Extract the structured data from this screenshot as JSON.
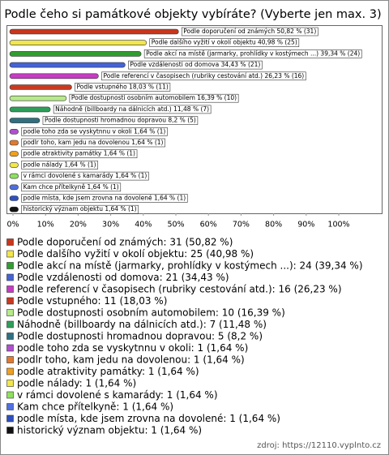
{
  "chart_data": {
    "type": "bar",
    "orientation": "horizontal",
    "title": "Podle čeho si památkové objekty vybíráte? (Vyberte jen max. 3)",
    "values": [
      50.82,
      40.98,
      39.34,
      34.43,
      26.23,
      18.03,
      16.39,
      11.48,
      8.2,
      1.64,
      1.64,
      1.64,
      1.64,
      1.64,
      1.64,
      1.64,
      1.64
    ],
    "colors": [
      "#c8361c",
      "#f2e64a",
      "#2f9e2f",
      "#4463d6",
      "#c73bc4",
      "#c83a20",
      "#b6ea8a",
      "#2f9e5a",
      "#2f7080",
      "#b050d0",
      "#e07a30",
      "#f0a020",
      "#f2e64a",
      "#8fe060",
      "#5070e0",
      "#2f50c0",
      "#111111"
    ],
    "bar_labels": [
      "Podle doporučení od známých 50,82 % (31)",
      "Podle dalšího vyžití v okolí objektu 40,98 % (25)",
      "Podle akcí na místě (jarmarky, prohlídky v kostýmech ...) 39,34 % (24)",
      "Podle vzdálenosti od domova 34,43 % (21)",
      "Podle referencí v časopisech (rubriky cestování atd.) 26,23 % (16)",
      "Podle vstupného 18,03 % (11)",
      "Podle dostupnosti osobním automobilem 16,39 % (10)",
      "Náhodně (billboardy na dálnicích atd.) 11,48 % (7)",
      "Podle dostupnosti hromadnou dopravou 8,2 % (5)",
      "podle toho zda se vyskytnnu v okoli 1,64 % (1)",
      "podlr toho, kam jedu na dovolenou 1,64 % (1)",
      "podle atraktivity památky 1,64 % (1)",
      "podle nálady 1,64 % (1)",
      "v rámci dovolené s kamarády 1,64 % (1)",
      "Kam chce přítelkyně 1,64 % (1)",
      "podle místa, kde jsem zrovna na dovolené 1,64 % (1)",
      "historický význam objektu 1,64 % (1)"
    ],
    "legend_labels": [
      "Podle doporučení od známých: 31 (50,82 %)",
      "Podle dalšího vyžití v okolí objektu: 25 (40,98 %)",
      "Podle akcí na místě (jarmarky, prohlídky v kostýmech ...): 24 (39,34 %)",
      "Podle vzdálenosti od domova: 21 (34,43 %)",
      "Podle referencí v časopisech (rubriky cestování atd.): 16 (26,23 %)",
      "Podle vstupného: 11 (18,03 %)",
      "Podle dostupnosti osobním automobilem: 10 (16,39 %)",
      "Náhodně (billboardy na dálnicích atd.): 7 (11,48 %)",
      "Podle dostupnosti hromadnou dopravou: 5 (8,2 %)",
      "podle toho zda se vyskytnnu v okoli: 1 (1,64 %)",
      "podlr toho, kam jedu na dovolenou: 1 (1,64 %)",
      "podle atraktivity památky: 1 (1,64 %)",
      "podle nálady: 1 (1,64 %)",
      "v rámci dovolené s kamarády: 1 (1,64 %)",
      "Kam chce přítelkyně: 1 (1,64 %)",
      "podle místa, kde jsem zrovna na dovolené: 1 (1,64 %)",
      "historický význam objektu: 1 (1,64 %)"
    ],
    "xlim": [
      0,
      100
    ],
    "xticks": [
      {
        "value": 0,
        "label": "0%"
      },
      {
        "value": 10,
        "label": "10%"
      },
      {
        "value": 20,
        "label": "20%"
      },
      {
        "value": 30,
        "label": "30%"
      },
      {
        "value": 40,
        "label": "40%"
      },
      {
        "value": 50,
        "label": "50%"
      },
      {
        "value": 60,
        "label": "60%"
      },
      {
        "value": 70,
        "label": "70%"
      },
      {
        "value": 80,
        "label": "80%"
      },
      {
        "value": 90,
        "label": "90%"
      },
      {
        "value": 100,
        "label": "100%"
      }
    ],
    "source": "zdroj: https://12110.vyplnto.cz"
  }
}
